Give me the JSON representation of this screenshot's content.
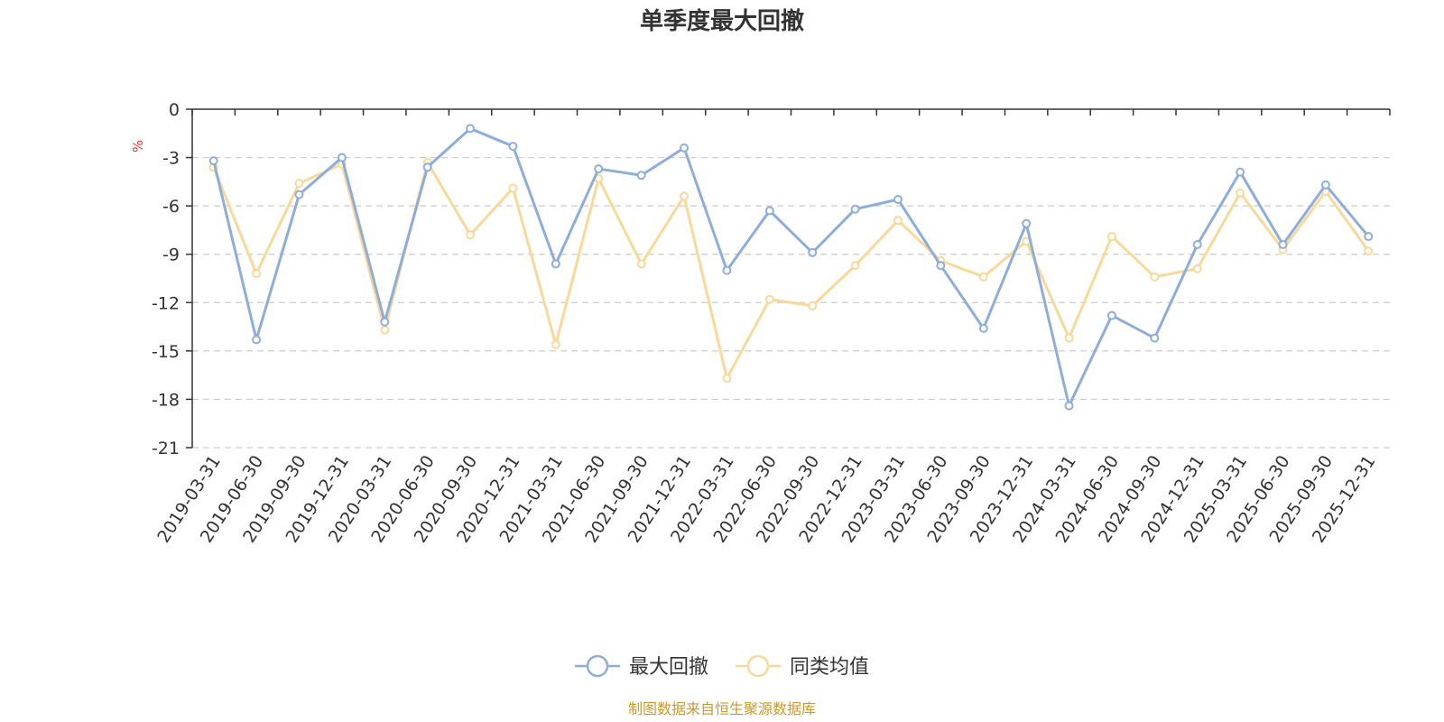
{
  "chart_data": {
    "type": "line",
    "title": "单季度最大回撤",
    "ylabel": "%",
    "ylim": [
      -21,
      0
    ],
    "yticks": [
      0,
      -3,
      -6,
      -9,
      -12,
      -15,
      -18,
      -21
    ],
    "grid": true,
    "legend_position": "bottom-center",
    "categories": [
      "2019-03-31",
      "2019-06-30",
      "2019-09-30",
      "2019-12-31",
      "2020-03-31",
      "2020-06-30",
      "2020-09-30",
      "2020-12-31",
      "2021-03-31",
      "2021-06-30",
      "2021-09-30",
      "2021-12-31",
      "2022-03-31",
      "2022-06-30",
      "2022-09-30",
      "2022-12-31",
      "2023-03-31",
      "2023-06-30",
      "2023-09-30",
      "2023-12-31",
      "2024-03-31",
      "2024-06-30",
      "2024-09-30",
      "2024-12-31",
      "2025-03-31",
      "2025-06-30",
      "2025-09-30",
      "2025-12-31"
    ],
    "series": [
      {
        "name": "最大回撤",
        "color": "#8eadd9",
        "values": [
          -3.2,
          -14.3,
          -5.3,
          -3.0,
          -13.2,
          -3.6,
          -1.2,
          -2.3,
          -9.6,
          -3.7,
          -4.1,
          -2.4,
          -10.0,
          -6.3,
          -8.9,
          -6.2,
          -5.6,
          -9.7,
          -13.6,
          -7.1,
          -18.4,
          -12.8,
          -14.2,
          -8.4,
          -3.9,
          -8.4,
          -4.7,
          -7.9
        ]
      },
      {
        "name": "同类均值",
        "color": "#f8d99a",
        "values": [
          -3.6,
          -10.2,
          -4.6,
          -3.4,
          -13.7,
          -3.3,
          -7.8,
          -4.9,
          -14.6,
          -4.3,
          -9.6,
          -5.4,
          -16.7,
          -11.8,
          -12.2,
          -9.7,
          -6.9,
          -9.4,
          -10.4,
          -8.2,
          -14.2,
          -7.9,
          -10.4,
          -9.9,
          -5.2,
          -8.7,
          -5.1,
          -8.8
        ]
      }
    ],
    "source": "制图数据来自恒生聚源数据库"
  }
}
